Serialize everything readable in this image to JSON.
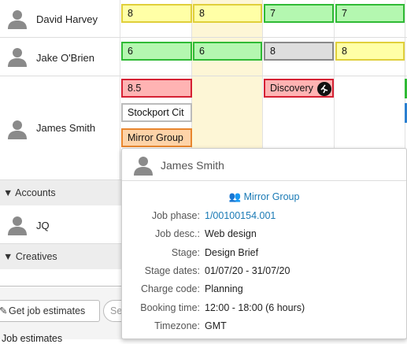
{
  "people": [
    "David Harvey",
    "Jake O'Brien",
    "James Smith",
    "JQ"
  ],
  "groups": [
    "Accounts",
    "Creatives"
  ],
  "bookings": {
    "david": [
      "8",
      "8",
      "7",
      "7"
    ],
    "jake": [
      "6",
      "6",
      "8",
      "8"
    ],
    "james": [
      "8.5",
      "Stockport Cit",
      "Mirror Group",
      "Discovery"
    ]
  },
  "tooltip": {
    "name": "James Smith",
    "client": "Mirror Group",
    "fields": [
      {
        "label": "Job phase:",
        "value": "1/00100154.001"
      },
      {
        "label": "Job desc.:",
        "value": "Web design"
      },
      {
        "label": "Stage:",
        "value": "Design Brief"
      },
      {
        "label": "Stage dates:",
        "value": "01/07/20 - 31/07/20"
      },
      {
        "label": "Charge code:",
        "value": "Planning"
      },
      {
        "label": "Booking time:",
        "value": "12:00 - 18:00 (6 hours)"
      },
      {
        "label": "Timezone:",
        "value": "GMT"
      }
    ]
  },
  "toolbar": {
    "button": "Get job estimates",
    "search": "Se"
  },
  "footer": "Job estimates"
}
